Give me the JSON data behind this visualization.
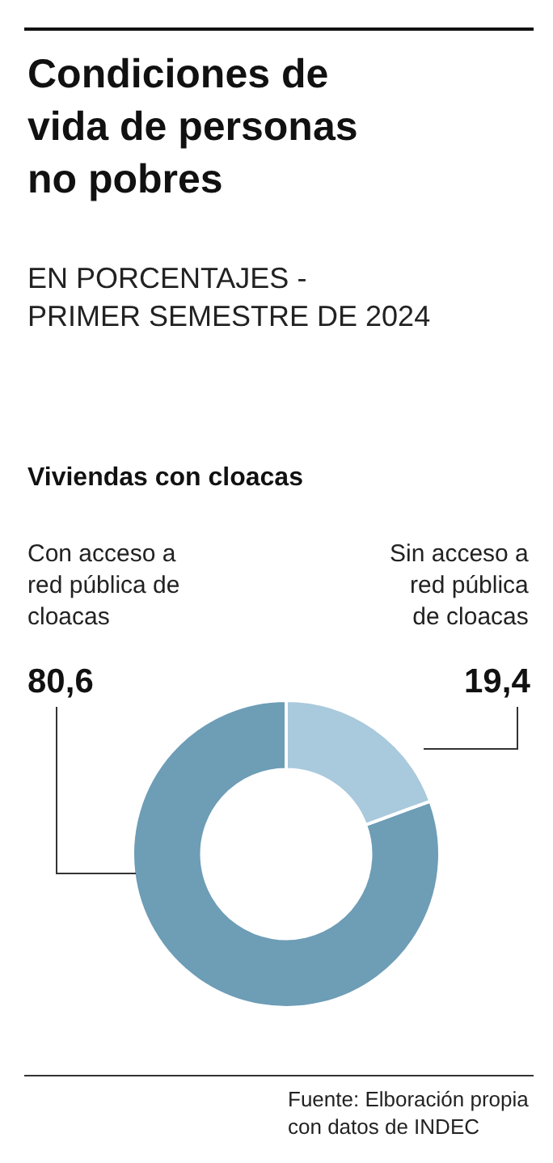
{
  "chart_data": {
    "type": "donut",
    "title": "Condiciones de vida de personas no pobres",
    "subtitle": "EN PORCENTAJES - PRIMER SEMESTRE DE 2024",
    "categories": [
      "Con acceso a red pública de cloacas",
      "Sin acceso a red pública de cloacas"
    ],
    "values": [
      80.6,
      19.4
    ],
    "colors": [
      "#6e9db6",
      "#a9c9dc"
    ],
    "value_labels": [
      "80,6",
      "19,4"
    ],
    "legend": false,
    "annotations": [
      "Viviendas con cloacas",
      "Fuente: Elboración propia con datos de INDEC"
    ]
  }
}
